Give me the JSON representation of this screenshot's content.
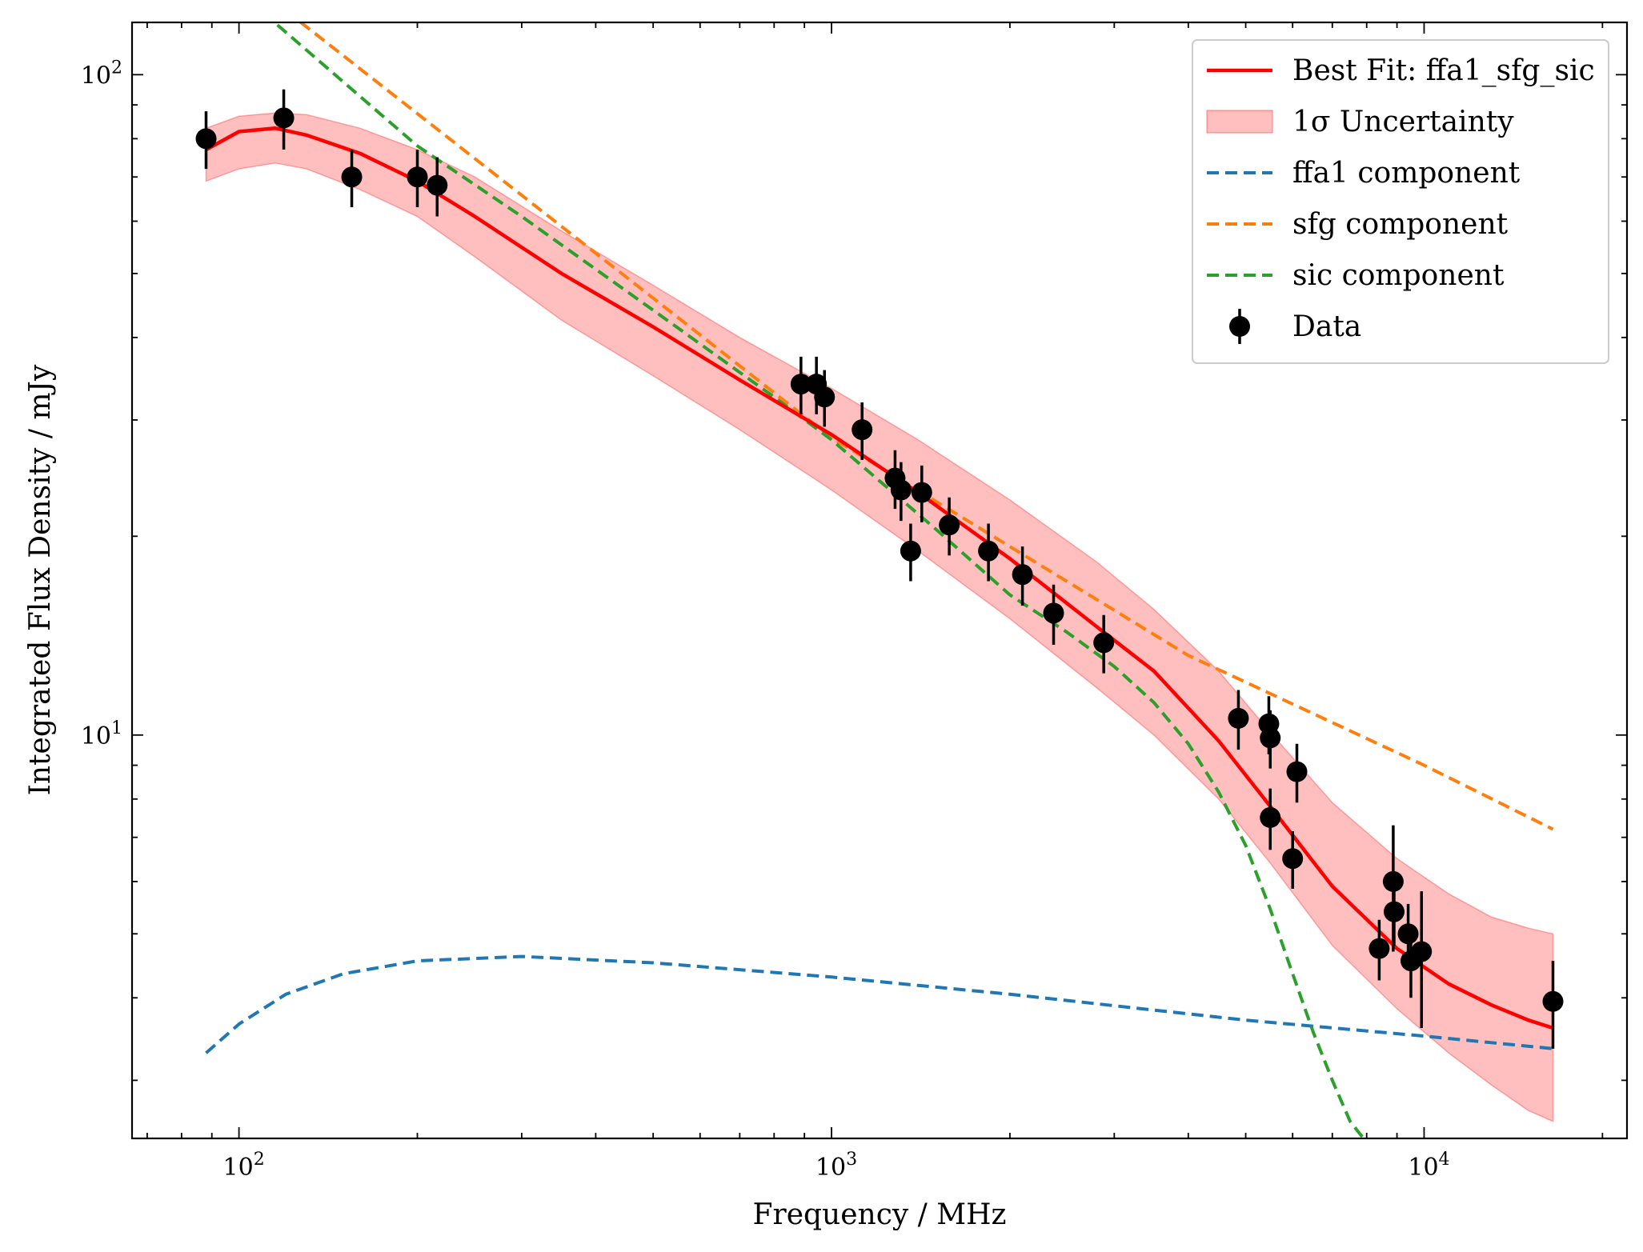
{
  "chart_data": {
    "type": "scatter",
    "title": "",
    "xlabel": "Frequency / MHz",
    "ylabel": "Integrated Flux Density / mJy",
    "xscale": "log",
    "yscale": "log",
    "xlim": [
      66,
      22000
    ],
    "ylim": [
      2.45,
      120
    ],
    "x_ticks": [
      {
        "value": 100,
        "base": "10",
        "exp": "2"
      },
      {
        "value": 1000,
        "base": "10",
        "exp": "3"
      },
      {
        "value": 10000,
        "base": "10",
        "exp": "4"
      }
    ],
    "y_ticks": [
      {
        "value": 10,
        "base": "10",
        "exp": "1"
      },
      {
        "value": 100,
        "base": "10",
        "exp": "2"
      }
    ],
    "legend_position": "top-right",
    "legend": [
      {
        "label": "Best Fit: ffa1_sfg_sic",
        "kind": "line",
        "color": "#ff0000"
      },
      {
        "label": "1σ Uncertainty",
        "kind": "band",
        "color": "#ff0000"
      },
      {
        "label": "ffa1 component",
        "kind": "dashed",
        "color": "#1f77b4"
      },
      {
        "label": "sfg component",
        "kind": "dashed",
        "color": "#ff7f0e"
      },
      {
        "label": "sic component",
        "kind": "dashed",
        "color": "#2ca02c"
      },
      {
        "label": "Data",
        "kind": "errorbar",
        "color": "#000000"
      }
    ],
    "series": [
      {
        "name": "Best Fit: ffa1_sfg_sic",
        "style": "line",
        "color": "#ff0000",
        "x": [
          88,
          100,
          115,
          130,
          160,
          200,
          250,
          350,
          500,
          700,
          1000,
          1400,
          2000,
          2800,
          3500,
          4500,
          5500,
          7000,
          9000,
          11000,
          13000,
          15000,
          16500
        ],
        "y": [
          77,
          82,
          83,
          81,
          76,
          69,
          61,
          50,
          41.5,
          34.5,
          28.5,
          23.3,
          18.5,
          14.6,
          12.5,
          9.8,
          7.8,
          5.9,
          4.75,
          4.2,
          3.9,
          3.7,
          3.6
        ]
      },
      {
        "name": "1σ Uncertainty",
        "style": "band",
        "color": "#ff0000",
        "x": [
          88,
          100,
          115,
          130,
          160,
          200,
          250,
          350,
          500,
          700,
          1000,
          1400,
          2000,
          2800,
          3500,
          4500,
          5500,
          7000,
          9000,
          11000,
          13000,
          15000,
          16500
        ],
        "upper": [
          83,
          86.5,
          87.5,
          87,
          83,
          77,
          70,
          58,
          48,
          40,
          33.5,
          28,
          22.7,
          18.3,
          15.5,
          12.5,
          10.1,
          7.9,
          6.5,
          5.75,
          5.3,
          5.1,
          5.0
        ],
        "lower": [
          69,
          72,
          73.5,
          72,
          67,
          61,
          53,
          42.5,
          35,
          29,
          23.5,
          19,
          15,
          11.8,
          10,
          8,
          6.4,
          4.8,
          3.85,
          3.3,
          2.95,
          2.7,
          2.6
        ]
      },
      {
        "name": "ffa1 component",
        "style": "dashed",
        "color": "#1f77b4",
        "x": [
          88,
          100,
          120,
          150,
          200,
          300,
          500,
          1000,
          2000,
          5000,
          10000,
          16500
        ],
        "y": [
          3.3,
          3.65,
          4.05,
          4.35,
          4.55,
          4.62,
          4.52,
          4.3,
          4.05,
          3.7,
          3.5,
          3.35
        ]
      },
      {
        "name": "sfg component",
        "style": "dashed",
        "color": "#ff7f0e",
        "x": [
          120,
          1000,
          4000,
          10000,
          16500
        ],
        "y": [
          125,
          28.2,
          13.2,
          9.0,
          7.2
        ]
      },
      {
        "name": "sic component",
        "style": "dashed",
        "color": "#2ca02c",
        "x": [
          110,
          200,
          300,
          500,
          800,
          1000,
          1500,
          2000,
          2500,
          3000,
          3500,
          4000,
          4500,
          5000,
          5500,
          6000,
          6500,
          7000,
          7500,
          7900
        ],
        "y": [
          124,
          78,
          61,
          44,
          32.5,
          28,
          20.5,
          16.3,
          14.3,
          12.7,
          11.2,
          9.7,
          8.2,
          6.8,
          5.45,
          4.35,
          3.55,
          3.0,
          2.6,
          2.45
        ]
      },
      {
        "name": "Data",
        "style": "errorbar",
        "color": "#000000",
        "points": [
          {
            "x": 88,
            "y": 80,
            "err": 8
          },
          {
            "x": 119,
            "y": 86,
            "err": 9
          },
          {
            "x": 155,
            "y": 70,
            "err": 7
          },
          {
            "x": 200,
            "y": 70,
            "err": 7
          },
          {
            "x": 216,
            "y": 68,
            "err": 7
          },
          {
            "x": 888,
            "y": 34,
            "err": 3.4
          },
          {
            "x": 943,
            "y": 34,
            "err": 3.4
          },
          {
            "x": 973,
            "y": 32.5,
            "err": 3.2
          },
          {
            "x": 1126,
            "y": 29,
            "err": 2.9
          },
          {
            "x": 1280,
            "y": 24.5,
            "err": 2.5
          },
          {
            "x": 1310,
            "y": 23.5,
            "err": 2.4
          },
          {
            "x": 1360,
            "y": 19,
            "err": 1.9
          },
          {
            "x": 1420,
            "y": 23.3,
            "err": 2.3
          },
          {
            "x": 1580,
            "y": 20.8,
            "err": 2.1
          },
          {
            "x": 1840,
            "y": 19,
            "err": 1.9
          },
          {
            "x": 2100,
            "y": 17.5,
            "err": 1.8
          },
          {
            "x": 2370,
            "y": 15.3,
            "err": 1.6
          },
          {
            "x": 2880,
            "y": 13.8,
            "err": 1.4
          },
          {
            "x": 4860,
            "y": 10.6,
            "err": 1.1
          },
          {
            "x": 5470,
            "y": 10.4,
            "err": 1.05
          },
          {
            "x": 5500,
            "y": 9.9,
            "err": 1.0
          },
          {
            "x": 5500,
            "y": 7.5,
            "err": 0.8
          },
          {
            "x": 6100,
            "y": 8.8,
            "err": 0.9
          },
          {
            "x": 6000,
            "y": 6.5,
            "err": 0.65
          },
          {
            "x": 8400,
            "y": 4.75,
            "err": 0.5
          },
          {
            "x": 8870,
            "y": 6.0,
            "err": 1.3
          },
          {
            "x": 8900,
            "y": 5.4,
            "err": 0.6
          },
          {
            "x": 9400,
            "y": 5.0,
            "err": 0.55
          },
          {
            "x": 9500,
            "y": 4.55,
            "err": 0.55
          },
          {
            "x": 9900,
            "y": 4.7,
            "err": 1.1
          },
          {
            "x": 16500,
            "y": 3.95,
            "err": 0.6
          }
        ]
      }
    ]
  }
}
